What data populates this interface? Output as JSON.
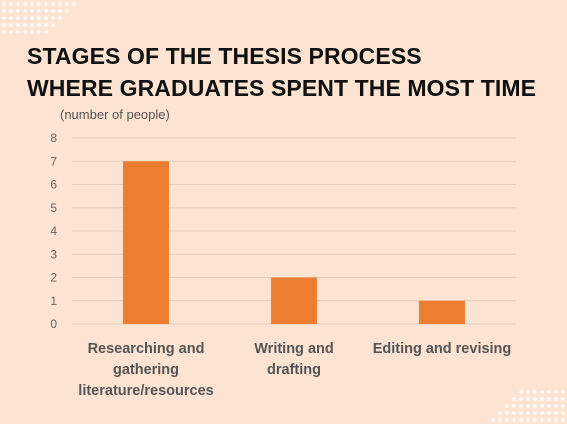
{
  "title_lines": [
    "STAGES OF THE THESIS PROCESS",
    "WHERE GRADUATES SPENT THE MOST TIME"
  ],
  "colors": {
    "background": "#fce3d2",
    "bar": "#ed7d31",
    "grid": "#e8cdbd",
    "dots": "#ffffff"
  },
  "chart_data": {
    "type": "bar",
    "title": "STAGES OF THE THESIS PROCESS WHERE GRADUATES SPENT THE MOST TIME",
    "ylabel": "(number of people)",
    "xlabel": "",
    "categories": [
      "Researching and gathering literature/resources",
      "Writing and drafting",
      "Editing and revising"
    ],
    "category_label_lines": [
      [
        "Researching and",
        "gathering",
        "literature/resources"
      ],
      [
        "Writing and",
        "drafting"
      ],
      [
        "Editing and revising"
      ]
    ],
    "values": [
      7,
      2,
      1
    ],
    "ylim": [
      0,
      8
    ],
    "yticks": [
      "0",
      "1",
      "2",
      "3",
      "4",
      "5",
      "6",
      "7",
      "8"
    ],
    "grid": true,
    "legend": "none"
  }
}
